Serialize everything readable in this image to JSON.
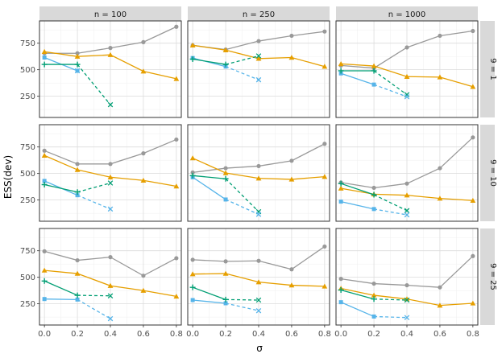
{
  "chart_data": {
    "type": "line",
    "ylabel": "ESS(dev)",
    "xlabel": "σ",
    "xlim": [
      -0.03,
      0.83
    ],
    "ylim": [
      50,
      960
    ],
    "xticks": [
      0.0,
      0.2,
      0.4,
      0.6,
      0.8
    ],
    "xtick_labels": [
      "0.0",
      "0.2",
      "0.4",
      "0.6",
      "0.8"
    ],
    "yticks": [
      250,
      500,
      750
    ],
    "ytick_labels": [
      "250",
      "500",
      "750"
    ],
    "col_labels": [
      "n = 100",
      "n = 250",
      "n = 1000"
    ],
    "row_labels": [
      "9 = 1",
      "9 = 10",
      "9 = 25"
    ],
    "series_styles": [
      {
        "name": "grey-circle",
        "color": "#999999",
        "marker": "circle",
        "dash": false
      },
      {
        "name": "orange-triangle",
        "color": "#E69F00",
        "marker": "triangle",
        "dash": false
      },
      {
        "name": "blue-square",
        "color": "#56B4E9",
        "marker": "square",
        "dash": false
      },
      {
        "name": "green-plus",
        "color": "#009E73",
        "marker": "plus",
        "dash": false
      },
      {
        "name": "green-x",
        "color": "#009E73",
        "marker": "x",
        "dash": true
      },
      {
        "name": "blue-x",
        "color": "#56B4E9",
        "marker": "x",
        "dash": true
      }
    ],
    "panels": [
      {
        "row": 0,
        "col": 0,
        "series": [
          {
            "name": "grey-circle",
            "x": [
              0,
              0.2,
              0.4,
              0.6,
              0.8
            ],
            "y": [
              655,
              655,
              705,
              760,
              905
            ]
          },
          {
            "name": "orange-triangle",
            "x": [
              0,
              0.2,
              0.4,
              0.6,
              0.8
            ],
            "y": [
              670,
              625,
              640,
              485,
              415
            ]
          },
          {
            "name": "blue-square",
            "x": [
              0,
              0.2
            ],
            "y": [
              615,
              490
            ]
          },
          {
            "name": "green-plus",
            "x": [
              0,
              0.2
            ],
            "y": [
              550,
              550
            ]
          },
          {
            "name": "green-x",
            "x": [
              0.2,
              0.4
            ],
            "y": [
              550,
              170
            ]
          },
          {
            "name": "blue-x",
            "x": [
              0.2
            ],
            "y": [
              490
            ]
          }
        ]
      },
      {
        "row": 0,
        "col": 1,
        "series": [
          {
            "name": "grey-circle",
            "x": [
              0,
              0.2,
              0.4,
              0.6,
              0.8
            ],
            "y": [
              730,
              690,
              770,
              820,
              860
            ]
          },
          {
            "name": "orange-triangle",
            "x": [
              0,
              0.2,
              0.4,
              0.6,
              0.8
            ],
            "y": [
              730,
              685,
              605,
              615,
              530
            ]
          },
          {
            "name": "blue-square",
            "x": [
              0,
              0.2
            ],
            "y": [
              610,
              530
            ]
          },
          {
            "name": "green-plus",
            "x": [
              0,
              0.2
            ],
            "y": [
              600,
              550
            ]
          },
          {
            "name": "green-x",
            "x": [
              0.2,
              0.4
            ],
            "y": [
              550,
              630
            ]
          },
          {
            "name": "blue-x",
            "x": [
              0.2,
              0.4
            ],
            "y": [
              530,
              405
            ]
          }
        ]
      },
      {
        "row": 0,
        "col": 2,
        "series": [
          {
            "name": "grey-circle",
            "x": [
              0,
              0.2,
              0.4,
              0.6,
              0.8
            ],
            "y": [
              540,
              515,
              710,
              820,
              865
            ]
          },
          {
            "name": "orange-triangle",
            "x": [
              0,
              0.2,
              0.4,
              0.6,
              0.8
            ],
            "y": [
              555,
              535,
              435,
              430,
              340
            ]
          },
          {
            "name": "blue-square",
            "x": [
              0,
              0.2
            ],
            "y": [
              465,
              360
            ]
          },
          {
            "name": "green-plus",
            "x": [
              0,
              0.2
            ],
            "y": [
              490,
              490
            ]
          },
          {
            "name": "green-x",
            "x": [
              0.2,
              0.4
            ],
            "y": [
              490,
              265
            ]
          },
          {
            "name": "blue-x",
            "x": [
              0.2,
              0.4
            ],
            "y": [
              360,
              245
            ]
          }
        ]
      },
      {
        "row": 1,
        "col": 0,
        "series": [
          {
            "name": "grey-circle",
            "x": [
              0,
              0.2,
              0.4,
              0.6,
              0.8
            ],
            "y": [
              715,
              590,
              590,
              690,
              820
            ]
          },
          {
            "name": "orange-triangle",
            "x": [
              0,
              0.2,
              0.4,
              0.6,
              0.8
            ],
            "y": [
              670,
              535,
              465,
              435,
              380
            ]
          },
          {
            "name": "blue-square",
            "x": [
              0,
              0.2
            ],
            "y": [
              430,
              295
            ]
          },
          {
            "name": "green-plus",
            "x": [
              0,
              0.2
            ],
            "y": [
              395,
              325
            ]
          },
          {
            "name": "green-x",
            "x": [
              0.2,
              0.4
            ],
            "y": [
              325,
              410
            ]
          },
          {
            "name": "blue-x",
            "x": [
              0.2,
              0.4
            ],
            "y": [
              295,
              165
            ]
          }
        ]
      },
      {
        "row": 1,
        "col": 1,
        "series": [
          {
            "name": "grey-circle",
            "x": [
              0,
              0.2,
              0.4,
              0.6,
              0.8
            ],
            "y": [
              510,
              550,
              570,
              620,
              780
            ]
          },
          {
            "name": "orange-triangle",
            "x": [
              0,
              0.2,
              0.4,
              0.6,
              0.8
            ],
            "y": [
              645,
              505,
              455,
              445,
              470
            ]
          },
          {
            "name": "blue-square",
            "x": [
              0,
              0.2
            ],
            "y": [
              465,
              255
            ]
          },
          {
            "name": "green-plus",
            "x": [
              0,
              0.2
            ],
            "y": [
              480,
              450
            ]
          },
          {
            "name": "green-x",
            "x": [
              0.2,
              0.4
            ],
            "y": [
              450,
              140
            ]
          },
          {
            "name": "blue-x",
            "x": [
              0.2,
              0.4
            ],
            "y": [
              255,
              115
            ]
          }
        ]
      },
      {
        "row": 1,
        "col": 2,
        "series": [
          {
            "name": "grey-circle",
            "x": [
              0,
              0.2,
              0.4,
              0.6,
              0.8
            ],
            "y": [
              415,
              365,
              405,
              550,
              840
            ]
          },
          {
            "name": "orange-triangle",
            "x": [
              0,
              0.2,
              0.4,
              0.6,
              0.8
            ],
            "y": [
              360,
              305,
              295,
              265,
              245
            ]
          },
          {
            "name": "blue-square",
            "x": [
              0,
              0.2
            ],
            "y": [
              235,
              165
            ]
          },
          {
            "name": "green-plus",
            "x": [
              0,
              0.2
            ],
            "y": [
              405,
              300
            ]
          },
          {
            "name": "green-x",
            "x": [
              0.2,
              0.4
            ],
            "y": [
              300,
              150
            ]
          },
          {
            "name": "blue-x",
            "x": [
              0.2,
              0.4
            ],
            "y": [
              165,
              110
            ]
          }
        ]
      },
      {
        "row": 2,
        "col": 0,
        "series": [
          {
            "name": "grey-circle",
            "x": [
              0,
              0.2,
              0.4,
              0.6,
              0.8
            ],
            "y": [
              745,
              660,
              690,
              515,
              680
            ]
          },
          {
            "name": "orange-triangle",
            "x": [
              0,
              0.2,
              0.4,
              0.6,
              0.8
            ],
            "y": [
              565,
              535,
              420,
              375,
              320
            ]
          },
          {
            "name": "blue-square",
            "x": [
              0,
              0.2
            ],
            "y": [
              295,
              290
            ]
          },
          {
            "name": "green-plus",
            "x": [
              0,
              0.2
            ],
            "y": [
              465,
              330
            ]
          },
          {
            "name": "green-x",
            "x": [
              0.2,
              0.4
            ],
            "y": [
              330,
              325
            ]
          },
          {
            "name": "blue-x",
            "x": [
              0.2,
              0.4
            ],
            "y": [
              290,
              110
            ]
          }
        ]
      },
      {
        "row": 2,
        "col": 1,
        "series": [
          {
            "name": "grey-circle",
            "x": [
              0,
              0.2,
              0.4,
              0.6,
              0.8
            ],
            "y": [
              665,
              650,
              655,
              575,
              790
            ]
          },
          {
            "name": "orange-triangle",
            "x": [
              0,
              0.2,
              0.4,
              0.6,
              0.8
            ],
            "y": [
              530,
              535,
              455,
              425,
              415
            ]
          },
          {
            "name": "blue-square",
            "x": [
              0,
              0.2
            ],
            "y": [
              285,
              255
            ]
          },
          {
            "name": "green-plus",
            "x": [
              0,
              0.2
            ],
            "y": [
              405,
              290
            ]
          },
          {
            "name": "green-x",
            "x": [
              0.2,
              0.4
            ],
            "y": [
              290,
              285
            ]
          },
          {
            "name": "blue-x",
            "x": [
              0.2,
              0.4
            ],
            "y": [
              255,
              185
            ]
          }
        ]
      },
      {
        "row": 2,
        "col": 2,
        "series": [
          {
            "name": "grey-circle",
            "x": [
              0,
              0.2,
              0.4,
              0.6,
              0.8
            ],
            "y": [
              485,
              440,
              425,
              405,
              700
            ]
          },
          {
            "name": "orange-triangle",
            "x": [
              0,
              0.2,
              0.4,
              0.6,
              0.8
            ],
            "y": [
              395,
              330,
              295,
              235,
              255
            ]
          },
          {
            "name": "blue-square",
            "x": [
              0,
              0.2
            ],
            "y": [
              265,
              130
            ]
          },
          {
            "name": "green-plus",
            "x": [
              0,
              0.2
            ],
            "y": [
              380,
              295
            ]
          },
          {
            "name": "green-x",
            "x": [
              0.2,
              0.4
            ],
            "y": [
              295,
              285
            ]
          },
          {
            "name": "blue-x",
            "x": [
              0.2,
              0.4
            ],
            "y": [
              130,
              120
            ]
          }
        ]
      }
    ]
  }
}
